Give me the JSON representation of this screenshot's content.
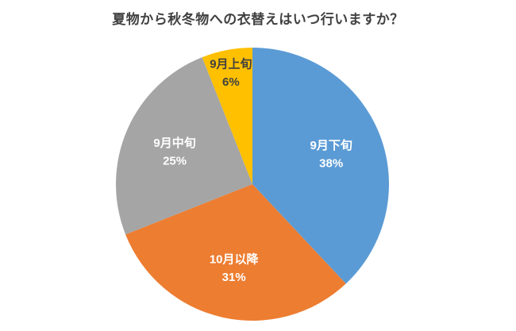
{
  "chart_data": {
    "type": "pie",
    "title": "夏物から秋冬物への衣替えはいつ行いますか？",
    "value_format": "percent",
    "legend": "none",
    "start_angle_deg": -90,
    "direction": "clockwise",
    "title_color": "#404040",
    "background": "#ffffff",
    "slices": [
      {
        "label": "9月下旬",
        "value": 38,
        "color": "#5B9BD5",
        "label_color": "#FFFFFF",
        "label_radius": 0.62
      },
      {
        "label": "10月以降",
        "value": 31,
        "color": "#ED7D31",
        "label_color": "#FFFFFF",
        "label_radius": 0.62
      },
      {
        "label": "9月中旬",
        "value": 25,
        "color": "#A5A5A5",
        "label_color": "#FFFFFF",
        "label_radius": 0.62
      },
      {
        "label": "9月上旬",
        "value": 6,
        "color": "#FFC000",
        "label_color": "#404040",
        "label_radius": 0.84
      }
    ]
  }
}
